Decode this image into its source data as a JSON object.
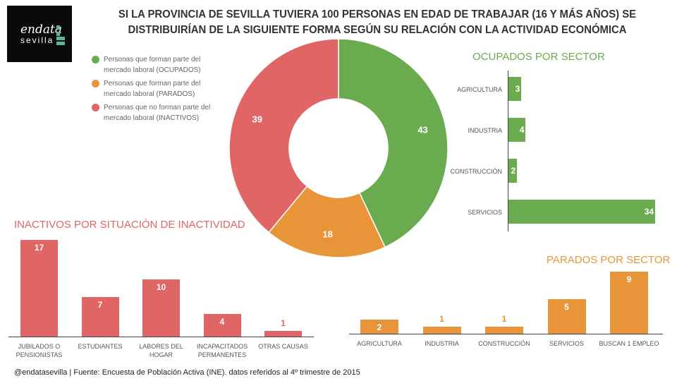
{
  "logo": {
    "line1": "endata",
    "line2": "sevilla"
  },
  "title": "SI LA PROVINCIA DE SEVILLA TUVIERA 100 PERSONAS EN EDAD DE TRABAJAR (16 Y  MÁS AÑOS) SE DISTRIBUIRÍAN DE LA SIGUIENTE FORMA SEGÚN SU RELACIÓN CON LA ACTIVIDAD ECONÓMICA",
  "footer": "@endatasevilla | Fuente: Encuesta de Población Activa (INE). datos referidos al 4º trimestre de 2015",
  "colors": {
    "ocupados": "#6aab4f",
    "parados": "#e8953a",
    "inactivos": "#e06565"
  },
  "chart_data": [
    {
      "type": "pie",
      "donut": true,
      "categories": [
        "Personas que forman parte del mercado laboral (OCUPADOS)",
        "Personas que forman parte del mercado laboral (PARADOS)",
        "Personas que no forman parte del mercado laboral (INACTIVOS)"
      ],
      "values": [
        43,
        18,
        39
      ],
      "legend": "top-left"
    },
    {
      "type": "bar",
      "orientation": "horizontal",
      "title": "OCUPADOS POR SECTOR",
      "categories": [
        "AGRICULTURA",
        "INDUSTRIA",
        "CONSTRUCCIÓN",
        "SERVICIOS"
      ],
      "values": [
        3,
        4,
        2,
        34
      ]
    },
    {
      "type": "bar",
      "title": "INACTIVOS POR SITUACIÓN DE INACTIVIDAD",
      "categories": [
        "JUBILADOS O PENSIONISTAS",
        "ESTUDIANTES",
        "LABORES DEL HOGAR",
        "INCAPACITADOS PERMANENTES",
        "OTRAS CAUSAS"
      ],
      "values": [
        17,
        7,
        10,
        4,
        1
      ]
    },
    {
      "type": "bar",
      "title": "PARADOS POR SECTOR",
      "categories": [
        "AGRICULTURA",
        "INDUSTRIA",
        "CONSTRUCCIÓN",
        "SERVICIOS",
        "BUSCAN 1 EMPLEO"
      ],
      "values": [
        2,
        1,
        1,
        5,
        9
      ]
    }
  ]
}
